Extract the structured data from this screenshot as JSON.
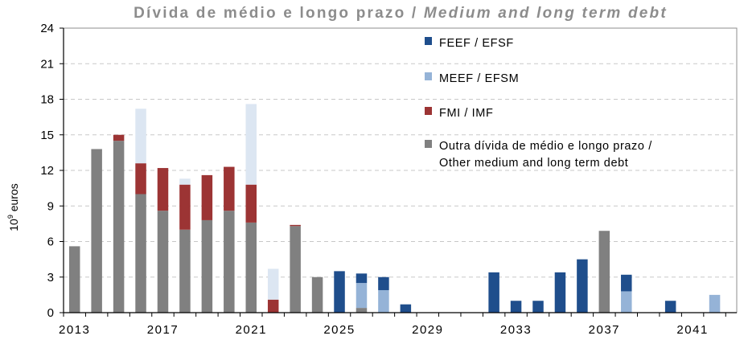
{
  "chart_data": {
    "type": "bar",
    "stacked": true,
    "title": "Dívida de médio e longo prazo / Medium and long term debt",
    "title_parts": [
      "Dívida de médio e longo prazo / ",
      "Medium and long term debt"
    ],
    "ylabel": "10⁹ euros",
    "ylabel_parts": [
      "10",
      "9",
      " euros"
    ],
    "ylim": [
      0,
      24
    ],
    "yticks": [
      0,
      3,
      6,
      9,
      12,
      15,
      18,
      21,
      24
    ],
    "grid": true,
    "legend_position": "top-right",
    "x": [
      2013,
      2014,
      2015,
      2016,
      2017,
      2018,
      2019,
      2020,
      2021,
      2022,
      2023,
      2024,
      2025,
      2026,
      2027,
      2028,
      2029,
      2030,
      2031,
      2032,
      2033,
      2034,
      2035,
      2036,
      2037,
      2038,
      2039,
      2040,
      2041,
      2042
    ],
    "xtick_labels": [
      "2013",
      "2017",
      "2021",
      "2025",
      "2029",
      "2033",
      "2037",
      "2041"
    ],
    "xtick_years": [
      2013,
      2017,
      2021,
      2025,
      2029,
      2033,
      2037,
      2041
    ],
    "series": [
      {
        "name": "Outra dívida de médio e longo prazo / Other medium and long term debt",
        "legend_lines": [
          "Outra dívida de médio e longo prazo /",
          "Other medium and long term debt"
        ],
        "color": "#808080",
        "values": [
          5.6,
          13.8,
          14.5,
          10.0,
          8.6,
          7.0,
          7.8,
          8.6,
          7.6,
          0,
          7.3,
          3.0,
          0,
          0.4,
          0,
          0,
          0,
          0,
          0,
          0,
          0,
          0,
          0,
          0,
          6.9,
          0,
          0,
          0,
          0,
          0
        ]
      },
      {
        "name": "FMI / IMF",
        "legend_lines": [
          "FMI / IMF"
        ],
        "color": "#9c3434",
        "values": [
          0,
          0,
          0.5,
          2.6,
          3.6,
          3.8,
          3.8,
          3.7,
          3.2,
          1.1,
          0.1,
          0,
          0,
          0,
          0,
          0,
          0,
          0,
          0,
          0,
          0,
          0,
          0,
          0,
          0,
          0,
          0,
          0,
          0,
          0
        ]
      },
      {
        "name": "MEEF / EFSM",
        "legend_lines": [
          "MEEF / EFSM"
        ],
        "color": "#95b3d7",
        "values": [
          0,
          0,
          0,
          0,
          0,
          0,
          0,
          0,
          0,
          0,
          0,
          0,
          0,
          2.1,
          1.9,
          0,
          0,
          0,
          0,
          0,
          0,
          0,
          0,
          0,
          0,
          1.8,
          0,
          0,
          0,
          1.5
        ]
      },
      {
        "name": "FEEF / EFSF",
        "legend_lines": [
          "FEEF / EFSF"
        ],
        "color": "#1f4e8c",
        "values": [
          0,
          0,
          0,
          0,
          0,
          0,
          0,
          0,
          0,
          0,
          0,
          0,
          3.5,
          0.8,
          1.1,
          0.7,
          0,
          0,
          0,
          3.4,
          1.0,
          1.0,
          3.4,
          4.5,
          0,
          1.4,
          0,
          1.0,
          0,
          0
        ]
      },
      {
        "name": "",
        "color": "#dce6f2",
        "values": [
          0,
          0,
          0,
          4.6,
          0,
          0.5,
          0,
          0,
          6.8,
          2.6,
          0,
          0,
          0,
          0,
          0,
          0,
          0,
          0,
          0,
          0,
          0,
          0,
          0,
          0,
          0,
          0,
          0,
          0,
          0,
          0
        ]
      }
    ],
    "legend_order": [
      3,
      2,
      1,
      0
    ]
  }
}
